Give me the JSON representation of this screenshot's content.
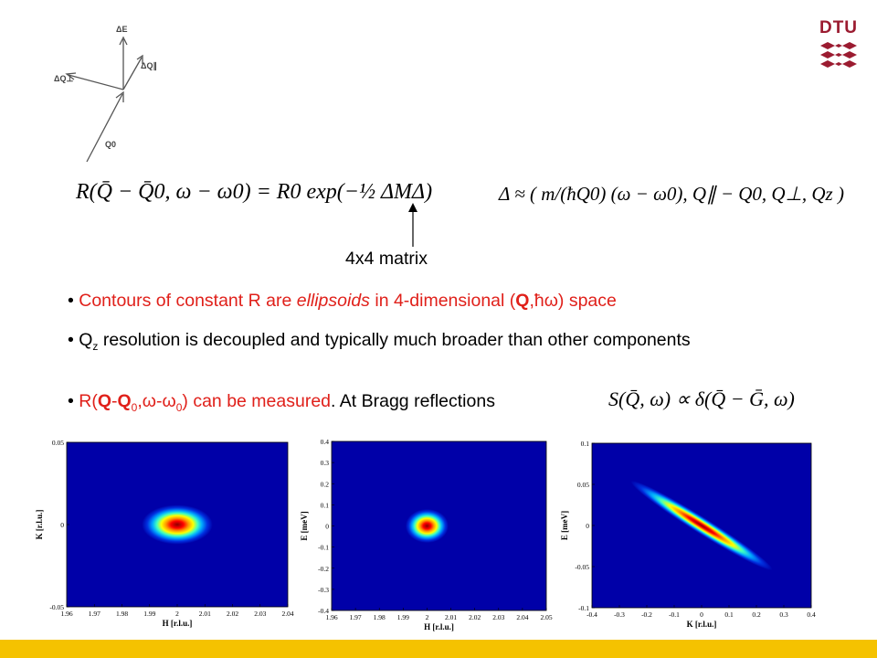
{
  "logo": {
    "text": "DTU"
  },
  "diagram": {
    "labels": [
      "ΔE",
      "ΔQ⊥",
      "ΔQ∥",
      "Q0"
    ]
  },
  "equations": {
    "resolution": "R(Q̄ − Q̄0, ω − ω0) = R0 exp(−½ ΔMΔ)",
    "delta": "Δ ≈ ( m/(ħQ0) (ω − ω0), Q∥ − Q0, Q⊥, Qz )",
    "bragg": "S(Q̄, ω) ∝ δ(Q̄ − Ḡ, ω)"
  },
  "annotation": {
    "matrix_label": "4x4 matrix"
  },
  "bullets": {
    "b1": {
      "part1": "Contours of constant R are ",
      "part2": "ellipsoids",
      "part3": " in 4-dimensional  (",
      "part4": "Q",
      "part5": ",ħω) space"
    },
    "b2": {
      "q": "Q",
      "sub": "z",
      "rest": " resolution is decoupled and typically much broader than other components"
    },
    "b3": {
      "p1": "R(",
      "q": "Q",
      "dash": "-",
      "q0": "Q",
      "sub0": "0",
      "mid": ",ω-ω",
      "sub1": "0",
      "close": ") can be measured",
      "rest": ". At Bragg reflections"
    }
  },
  "colors": {
    "red_text": "#e0201a",
    "plot_background": "#0000a8",
    "bottom_bar": "#f5c200",
    "logo": "#9b1b30"
  },
  "chart_data": [
    {
      "type": "heatmap",
      "xlabel": "H [r.l.u.]",
      "ylabel": "K [r.l.u.]",
      "xlim": [
        1.96,
        2.04
      ],
      "ylim": [
        -0.05,
        0.05
      ],
      "xticks": [
        "1.96",
        "1.97",
        "1.98",
        "1.99",
        "2",
        "2.01",
        "2.02",
        "2.03",
        "2.04"
      ],
      "yticks": [
        "0.05",
        "0",
        "-0.05"
      ],
      "peak": {
        "x": 2.0,
        "y": 0.0
      }
    },
    {
      "type": "heatmap",
      "xlabel": "H [r.l.u.]",
      "ylabel": "E [meV]",
      "xlim": [
        1.96,
        2.05
      ],
      "ylim": [
        -0.4,
        0.4
      ],
      "xticks": [
        "1.96",
        "1.97",
        "1.98",
        "1.99",
        "2",
        "2.01",
        "2.02",
        "2.03",
        "2.04",
        "2.05"
      ],
      "yticks": [
        "0.4",
        "0.3",
        "0.2",
        "0.1",
        "0",
        "-0.1",
        "-0.2",
        "-0.3",
        "-0.4"
      ],
      "peak": {
        "x": 2.0,
        "y": 0.0
      }
    },
    {
      "type": "heatmap",
      "xlabel": "K [r.l.u.]",
      "ylabel": "E [meV]",
      "xlim": [
        -0.4,
        0.4
      ],
      "ylim": [
        -0.1,
        0.1
      ],
      "xticks": [
        "-0.4",
        "-0.3",
        "-0.2",
        "-0.1",
        "0",
        "0.1",
        "0.2",
        "0.3",
        "0.4"
      ],
      "yticks": [
        "0.1",
        "0.05",
        "0",
        "-0.05",
        "-0.1"
      ],
      "peak": {
        "x": 0.0,
        "y": 0.0
      }
    }
  ]
}
